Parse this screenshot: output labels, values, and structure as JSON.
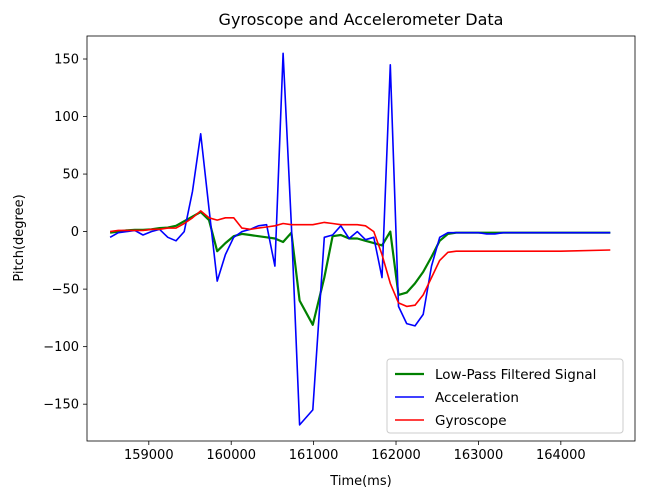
{
  "chart_data": {
    "type": "line",
    "title": "Gyroscope and Accelerometer Data",
    "xlabel": "Time(ms)",
    "ylabel": "Pitch(degree)",
    "xlim": [
      158250,
      164900
    ],
    "ylim": [
      -182,
      170
    ],
    "xticks": [
      159000,
      160000,
      161000,
      162000,
      163000,
      164000
    ],
    "yticks": [
      -150,
      -100,
      -50,
      0,
      50,
      100,
      150
    ],
    "grid": false,
    "legend_position": "bottom-right",
    "series": [
      {
        "name": "Low-Pass Filtered Signal",
        "color": "#008000",
        "x": [
          158530,
          158630,
          158730,
          158830,
          158930,
          159030,
          159130,
          159230,
          159330,
          159430,
          159530,
          159630,
          159730,
          159830,
          159930,
          160030,
          160130,
          160230,
          160330,
          160430,
          160530,
          160630,
          160730,
          160830,
          160990,
          161130,
          161230,
          161330,
          161430,
          161530,
          161630,
          161730,
          161830,
          161930,
          162030,
          162130,
          162230,
          162330,
          162430,
          162530,
          162630,
          162730,
          162830,
          163000,
          163500,
          164000,
          164600
        ],
        "y": [
          -1,
          0,
          1,
          1.5,
          1.5,
          2,
          3,
          3.5,
          5,
          9,
          13,
          17,
          10,
          -17,
          -10,
          -4,
          -2,
          -3,
          -4,
          -5,
          -6,
          -9,
          -1,
          -60,
          -81,
          -40,
          -4,
          -3,
          -6,
          -6,
          -8,
          -10,
          -12,
          0,
          -55,
          -53,
          -45,
          -35,
          -22,
          -8,
          -2,
          -1,
          -1,
          -1,
          -1,
          -1,
          -1
        ]
      },
      {
        "name": "Acceleration",
        "color": "#0000ff",
        "x": [
          158530,
          158630,
          158730,
          158830,
          158930,
          159030,
          159130,
          159230,
          159330,
          159430,
          159530,
          159630,
          159730,
          159830,
          159930,
          160030,
          160130,
          160230,
          160330,
          160430,
          160530,
          160630,
          160730,
          160830,
          160990,
          161130,
          161230,
          161330,
          161430,
          161530,
          161630,
          161730,
          161830,
          161930,
          162030,
          162130,
          162230,
          162330,
          162430,
          162530,
          162630,
          162730,
          162830,
          163000,
          163100,
          163200,
          163300,
          163500,
          163700,
          164000,
          164300,
          164600
        ],
        "y": [
          -5,
          -1,
          0,
          1,
          -3,
          0,
          2,
          -5,
          -8,
          0,
          35,
          85,
          20,
          -43,
          -20,
          -5,
          0,
          2,
          5,
          6,
          -30,
          155,
          5,
          -168,
          -155,
          -5,
          -3,
          5,
          -6,
          0,
          -7,
          -5,
          -40,
          145,
          -65,
          -80,
          -82,
          -72,
          -30,
          -5,
          -1,
          -1,
          -1,
          -1,
          -2,
          -2,
          -1,
          -1,
          -1,
          -1,
          -1,
          -1
        ]
      },
      {
        "name": "Gyroscope",
        "color": "#ff0000",
        "x": [
          158530,
          158630,
          158730,
          158830,
          158930,
          159030,
          159130,
          159230,
          159330,
          159430,
          159530,
          159630,
          159730,
          159830,
          159930,
          160030,
          160130,
          160230,
          160330,
          160430,
          160530,
          160630,
          160730,
          160830,
          160990,
          161130,
          161230,
          161330,
          161430,
          161530,
          161630,
          161730,
          161830,
          161930,
          162030,
          162130,
          162230,
          162330,
          162430,
          162530,
          162630,
          162730,
          163000,
          163500,
          164000,
          164600
        ],
        "y": [
          0,
          1,
          1,
          1,
          1,
          2,
          2,
          3,
          3,
          7,
          12,
          18,
          12,
          10,
          12,
          12,
          3,
          2,
          3,
          4,
          5,
          7,
          6,
          6,
          6,
          8,
          7,
          6,
          6,
          6,
          5,
          0,
          -20,
          -45,
          -62,
          -65,
          -64,
          -55,
          -40,
          -25,
          -18,
          -17,
          -17,
          -17,
          -17,
          -16
        ]
      }
    ]
  }
}
